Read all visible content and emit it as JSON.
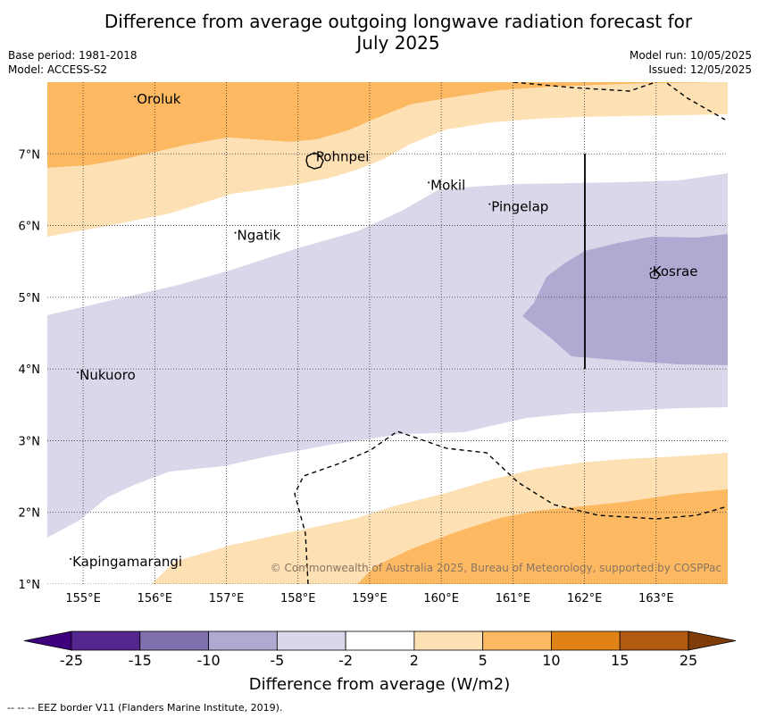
{
  "title": {
    "line1": "Difference from average outgoing longwave radiation forecast for",
    "line2": "July 2025"
  },
  "meta_left": {
    "base_period": "Base period: 1981-2018",
    "model": "Model: ACCESS-S2"
  },
  "meta_right": {
    "model_run": "Model run: 10/05/2025",
    "issued": "Issued: 12/05/2025"
  },
  "map": {
    "lon_range": [
      154.5,
      164.0
    ],
    "lat_range": [
      1.0,
      8.0
    ],
    "lon_ticks": [
      155,
      156,
      157,
      158,
      159,
      160,
      161,
      162,
      163
    ],
    "lon_tick_labels": [
      "155°E",
      "156°E",
      "157°E",
      "158°E",
      "159°E",
      "160°E",
      "161°E",
      "162°E",
      "163°E"
    ],
    "lat_ticks": [
      1,
      2,
      3,
      4,
      5,
      6,
      7
    ],
    "lat_tick_labels": [
      "1°N",
      "2°N",
      "3°N",
      "4°N",
      "5°N",
      "6°N",
      "7°N"
    ],
    "gridlines": true,
    "copyright": "© Commonwealth of Australia 2025, Bureau of Meteorology, supported by COSPPac",
    "places": [
      {
        "name": "Oroluk",
        "lon": 155.75,
        "lat": 7.7
      },
      {
        "name": "Pohnpei",
        "lon": 158.25,
        "lat": 6.9
      },
      {
        "name": "Mokil",
        "lon": 159.85,
        "lat": 6.5
      },
      {
        "name": "Pingelap",
        "lon": 160.7,
        "lat": 6.2
      },
      {
        "name": "Ngatik",
        "lon": 157.15,
        "lat": 5.8
      },
      {
        "name": "Kosrae",
        "lon": 162.95,
        "lat": 5.3
      },
      {
        "name": "Nukuoro",
        "lon": 154.95,
        "lat": 3.85
      },
      {
        "name": "Kapingamarangi",
        "lon": 154.85,
        "lat": 1.25
      }
    ]
  },
  "colorbar": {
    "labels": [
      "-25",
      "-15",
      "-10",
      "-5",
      "-2",
      "2",
      "5",
      "10",
      "15",
      "25"
    ],
    "colors": [
      "#54278f",
      "#8070ad",
      "#b0a9d1",
      "#d8d8ea",
      "#ffffff",
      "#fde0b4",
      "#fcb962",
      "#e08216",
      "#b25a0f"
    ],
    "under_color": "#3f007d",
    "over_color": "#7f3b08",
    "label": "Difference from average (W/m2)"
  },
  "footer": "--  --  -- EEZ border V11 (Flanders Marine Institute, 2019)."
}
